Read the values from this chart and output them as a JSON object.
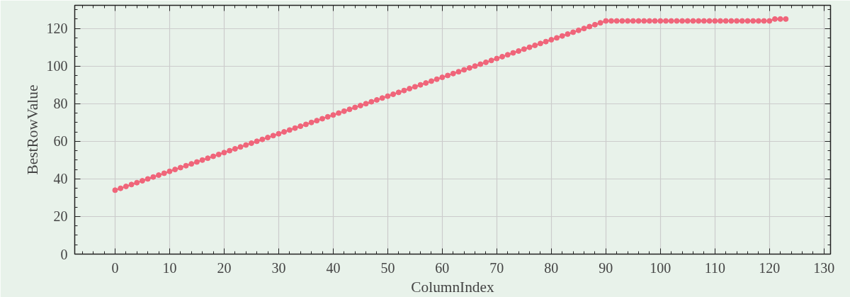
{
  "chart_data": {
    "type": "line",
    "xlabel": "ColumnIndex",
    "ylabel": "BestRowValue",
    "x": [
      0,
      1,
      2,
      3,
      4,
      5,
      6,
      7,
      8,
      9,
      10,
      11,
      12,
      13,
      14,
      15,
      16,
      17,
      18,
      19,
      20,
      21,
      22,
      23,
      24,
      25,
      26,
      27,
      28,
      29,
      30,
      31,
      32,
      33,
      34,
      35,
      36,
      37,
      38,
      39,
      40,
      41,
      42,
      43,
      44,
      45,
      46,
      47,
      48,
      49,
      50,
      51,
      52,
      53,
      54,
      55,
      56,
      57,
      58,
      59,
      60,
      61,
      62,
      63,
      64,
      65,
      66,
      67,
      68,
      69,
      70,
      71,
      72,
      73,
      74,
      75,
      76,
      77,
      78,
      79,
      80,
      81,
      82,
      83,
      84,
      85,
      86,
      87,
      88,
      89,
      90,
      91,
      92,
      93,
      94,
      95,
      96,
      97,
      98,
      99,
      100,
      101,
      102,
      103,
      104,
      105,
      106,
      107,
      108,
      109,
      110,
      111,
      112,
      113,
      114,
      115,
      116,
      117,
      118,
      119,
      120,
      121,
      122,
      123
    ],
    "series": [
      {
        "color": "#f0657a",
        "values": [
          34,
          35,
          36,
          37,
          38,
          39,
          40,
          41,
          42,
          43,
          44,
          45,
          46,
          47,
          48,
          49,
          50,
          51,
          52,
          53,
          54,
          55,
          56,
          57,
          58,
          59,
          60,
          61,
          62,
          63,
          64,
          65,
          66,
          67,
          68,
          69,
          70,
          71,
          72,
          73,
          74,
          75,
          76,
          77,
          78,
          79,
          80,
          81,
          82,
          83,
          84,
          85,
          86,
          87,
          88,
          89,
          90,
          91,
          92,
          93,
          94,
          95,
          96,
          97,
          98,
          99,
          100,
          101,
          102,
          103,
          104,
          105,
          106,
          107,
          108,
          109,
          110,
          111,
          112,
          113,
          114,
          115,
          116,
          117,
          118,
          119,
          120,
          121,
          122,
          123,
          124,
          124,
          124,
          124,
          124,
          124,
          124,
          124,
          124,
          124,
          124,
          124,
          124,
          124,
          124,
          124,
          124,
          124,
          124,
          124,
          124,
          124,
          124,
          124,
          124,
          124,
          124,
          124,
          124,
          124,
          124,
          125,
          125,
          125
        ]
      }
    ],
    "xlim": [
      -7.4,
      131.2
    ],
    "ylim": [
      0,
      132.3
    ],
    "xticks": [
      0,
      10,
      20,
      30,
      40,
      50,
      60,
      70,
      80,
      90,
      100,
      110,
      120,
      130
    ],
    "yticks": [
      0,
      20,
      40,
      60,
      80,
      100,
      120
    ],
    "grid": true,
    "marker": "circle",
    "line_style": "solid"
  }
}
